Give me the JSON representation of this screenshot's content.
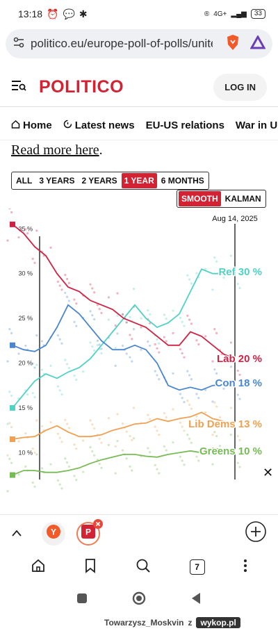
{
  "status": {
    "time": "13:18",
    "network": "4G+",
    "battery": "33"
  },
  "url": {
    "text": "politico.eu/europe-poll-of-polls/unite"
  },
  "header": {
    "logo": "POLITICO",
    "login": "LOG IN"
  },
  "nav": {
    "items": [
      "Home",
      "Latest news",
      "EU-US relations",
      "War in Ukrai"
    ]
  },
  "article": {
    "read_more": "Read more here",
    "period": "."
  },
  "range": {
    "options": [
      "ALL",
      "3 YEARS",
      "2 YEARS",
      "1 YEAR",
      "6 MONTHS"
    ],
    "active": "1 YEAR"
  },
  "smoothing": {
    "options": [
      "SMOOTH",
      "KALMAN"
    ],
    "active": "SMOOTH"
  },
  "tabs": {
    "count": "7"
  },
  "watermark": {
    "user": "Towarzysz_Moskvin",
    "suffix": "z",
    "site": "wykop.pl"
  },
  "chart_data": {
    "type": "line",
    "date_label": "Aug 14, 2025",
    "yticks": [
      "35 %",
      "30 %",
      "25 %",
      "20 %",
      "15 %",
      "10 %"
    ],
    "ylim": [
      7,
      36.5
    ],
    "x": [
      0,
      0.05,
      0.1,
      0.15,
      0.2,
      0.25,
      0.3,
      0.35,
      0.4,
      0.45,
      0.5,
      0.55,
      0.6,
      0.65,
      0.7,
      0.75,
      0.8,
      0.85,
      0.9,
      0.95,
      1.0
    ],
    "series": [
      {
        "name": "Ref",
        "label": "Ref 30 %",
        "color": "#4fd1c5",
        "values": [
          15,
          16.5,
          18,
          18.8,
          18.3,
          19,
          19.5,
          20.5,
          22,
          23.5,
          25,
          26.5,
          25,
          24,
          24.5,
          25.5,
          28,
          30.5,
          30,
          30,
          30.2
        ]
      },
      {
        "name": "Lab",
        "label": "Lab 20 %",
        "color": "#d22244",
        "values": [
          35.5,
          34.5,
          33,
          32,
          30,
          28.5,
          28,
          27,
          26.5,
          26,
          25,
          24.5,
          24,
          23,
          22,
          22,
          23.5,
          23,
          22,
          21,
          20.5
        ]
      },
      {
        "name": "Con",
        "label": "Con 18 %",
        "color": "#4a86cf",
        "values": [
          22,
          21.5,
          21.3,
          22,
          24,
          26.5,
          25.5,
          24,
          22.5,
          21.5,
          21.5,
          22,
          21.5,
          20,
          17.5,
          17,
          17.3,
          17,
          17.5,
          17.6,
          17.8
        ]
      },
      {
        "name": "Lib Dems",
        "label": "Lib Dems 13 %",
        "color": "#f0a050",
        "values": [
          11.5,
          11.7,
          11.8,
          12.5,
          13,
          12.3,
          11.8,
          11.8,
          12,
          12.5,
          12.8,
          13.2,
          13.3,
          13.8,
          13.5,
          13.8,
          14,
          14.5,
          13.8,
          13.5,
          13.2
        ]
      },
      {
        "name": "Greens",
        "label": "Greens 10 %",
        "color": "#77bb55",
        "values": [
          7.5,
          8,
          8,
          7.8,
          7.8,
          8,
          8.3,
          8.8,
          9.2,
          9.5,
          9.8,
          9.8,
          9.6,
          9.5,
          9.8,
          10,
          10.2,
          10,
          10.5,
          10.3,
          10.2
        ]
      }
    ]
  }
}
